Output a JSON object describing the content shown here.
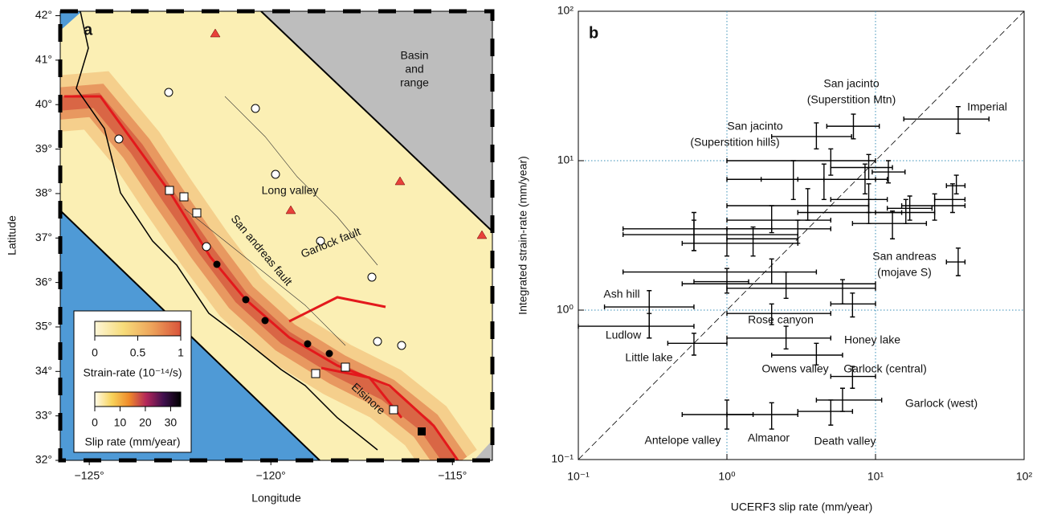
{
  "chart_data": [
    {
      "type": "map",
      "panel_label": "a",
      "xlabel": "Longitude",
      "ylabel": "Latitude",
      "xlim": [
        -125.8,
        -113.9
      ],
      "ylim": [
        32,
        42.1
      ],
      "xticks": [
        {
          "value": -125,
          "label": "−125°"
        },
        {
          "value": -120,
          "label": "−120°"
        },
        {
          "value": -115,
          "label": "−115°"
        }
      ],
      "yticks": [
        {
          "value": 32,
          "label": "32°"
        },
        {
          "value": 33,
          "label": "33°"
        },
        {
          "value": 34,
          "label": "34°"
        },
        {
          "value": 35,
          "label": "35°"
        },
        {
          "value": 36,
          "label": "36°"
        },
        {
          "value": 37,
          "label": "37°"
        },
        {
          "value": 38,
          "label": "38°"
        },
        {
          "value": 39,
          "label": "39°"
        },
        {
          "value": 40,
          "label": "40°"
        },
        {
          "value": 41,
          "label": "41°"
        },
        {
          "value": 42,
          "label": "42°"
        }
      ],
      "annotations": [
        [
          "Basin",
          "and",
          "range"
        ],
        [
          "Long valley"
        ],
        [
          "San andreas fault"
        ],
        [
          "Garlock fault"
        ],
        [
          "Elsinore"
        ]
      ],
      "colorbars": [
        {
          "label": "Strain-rate (10⁻¹⁴/s)",
          "clim": [
            0,
            1
          ],
          "ticks": [
            0,
            0.5,
            1
          ],
          "colors": [
            "#fdf6d8",
            "#f7dc7a",
            "#eda35a",
            "#d9533a"
          ]
        },
        {
          "label": "Slip rate (mm/year)",
          "clim": [
            0,
            34
          ],
          "ticks": [
            0,
            10,
            20,
            30
          ],
          "colors": [
            "#fffbe8",
            "#f8d35a",
            "#ef8a2a",
            "#b3265a",
            "#40104e",
            "#000000"
          ]
        }
      ]
    },
    {
      "type": "scatter",
      "panel_label": "b",
      "xlabel": "UCERF3 slip rate (mm/year)",
      "ylabel": "Integrated strain-rate (mm/year)",
      "xscale": "log",
      "yscale": "log",
      "xlim": [
        0.1,
        100
      ],
      "ylim": [
        0.1,
        100
      ],
      "xticks": [
        {
          "value": 0.1,
          "label": "10⁻¹"
        },
        {
          "value": 1,
          "label": "10⁰"
        },
        {
          "value": 10,
          "label": "10¹"
        },
        {
          "value": 100,
          "label": "10²"
        }
      ],
      "yticks": [
        {
          "value": 0.1,
          "label": "10⁻¹"
        },
        {
          "value": 1,
          "label": "10⁰"
        },
        {
          "value": 10,
          "label": "10¹"
        },
        {
          "value": 100,
          "label": "10²"
        }
      ],
      "xgrid": [
        1,
        10
      ],
      "ygrid": [
        1,
        10
      ],
      "grid_color": "#3a8fb7",
      "diagonal": true,
      "color": "#000000",
      "x": [
        36,
        7.1,
        4,
        12.2,
        9,
        8.5,
        5,
        4.5,
        2.8,
        9,
        3.5,
        9,
        16,
        13,
        17,
        25,
        33,
        35,
        36,
        0.6,
        0.6,
        1,
        1.5,
        3,
        2,
        2,
        1,
        2.5,
        6,
        7,
        0.3,
        0.3,
        0.6,
        2,
        2.5,
        4,
        7,
        6,
        1,
        2,
        5
      ],
      "values": [
        19,
        17,
        14.5,
        8.4,
        9,
        7.5,
        10,
        7.5,
        7.5,
        5.5,
        5,
        4.5,
        4.5,
        3.8,
        4.8,
        5,
        5.5,
        6.8,
        2.1,
        3.5,
        3.2,
        2.8,
        3,
        3.5,
        4,
        1.8,
        1.55,
        1.5,
        1.4,
        1.1,
        1.05,
        0.78,
        0.6,
        0.95,
        0.65,
        0.5,
        0.36,
        0.25,
        0.2,
        0.2,
        0.21
      ],
      "x_low": [
        15.5,
        4.7,
        2,
        9.5,
        5,
        3,
        1,
        1,
        1.7,
        5,
        1,
        3,
        10,
        7,
        12,
        15,
        25,
        30,
        30,
        0.2,
        0.2,
        0.5,
        1,
        1,
        1,
        0.2,
        0.6,
        0.5,
        1,
        5,
        0.15,
        0.1,
        0.4,
        1,
        1,
        2,
        5,
        4,
        0.5,
        1,
        3
      ],
      "x_high": [
        58,
        10.6,
        6.9,
        15.8,
        13,
        12,
        10,
        10,
        4.5,
        12,
        9,
        15,
        25,
        22,
        24,
        40,
        40,
        40,
        40,
        2,
        3,
        3,
        3,
        5,
        5,
        4,
        1.4,
        10,
        10,
        10,
        0.6,
        0.6,
        1,
        5,
        5,
        6,
        10,
        11,
        1.5,
        3,
        7
      ],
      "y_low": [
        15.2,
        14,
        12,
        7.1,
        7.5,
        6,
        8,
        5.5,
        5.5,
        4.5,
        4,
        3.8,
        3.8,
        3,
        4,
        4,
        4.5,
        6,
        1.7,
        2.5,
        2.5,
        2.3,
        2.3,
        2.8,
        3.3,
        1.5,
        1.3,
        1.2,
        1.1,
        0.9,
        0.65,
        0.65,
        0.5,
        0.8,
        0.55,
        0.43,
        0.3,
        0.21,
        0.16,
        0.16,
        0.17
      ],
      "y_high": [
        23,
        20.5,
        17.9,
        10,
        11,
        9.5,
        12,
        9.5,
        10,
        7,
        6.5,
        5.5,
        5.5,
        4.6,
        5.8,
        6,
        7,
        8,
        2.6,
        4.5,
        4,
        3.5,
        3.6,
        4,
        5,
        2.2,
        1.9,
        1.8,
        1.6,
        1.3,
        1.35,
        0.95,
        0.7,
        1.1,
        0.78,
        0.6,
        0.42,
        0.3,
        0.25,
        0.24,
        0.25
      ],
      "annotations": [
        [
          "San jacinto",
          "(Superstition Mtn)"
        ],
        [
          "Imperial"
        ],
        [
          "San jacinto",
          "(Superstition hills)"
        ],
        [
          "San andreas",
          "(mojave S)"
        ],
        [
          "Ash hill"
        ],
        [
          "Ludlow"
        ],
        [
          "Little lake"
        ],
        [
          "Rose canyon"
        ],
        [
          "Honey lake"
        ],
        [
          "Owens valley"
        ],
        [
          "Garlock (central)"
        ],
        [
          "Garlock (west)"
        ],
        [
          "Antelope valley"
        ],
        [
          "Almanor"
        ],
        [
          "Death valley"
        ]
      ]
    }
  ]
}
